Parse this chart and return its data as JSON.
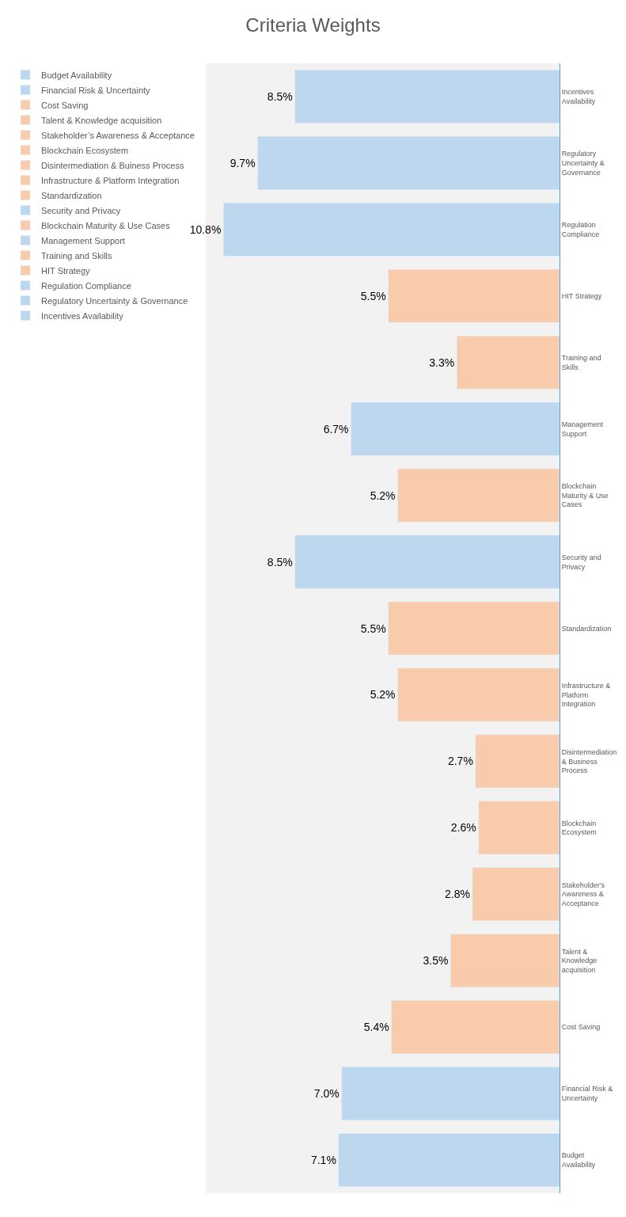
{
  "chart_data": {
    "type": "bar",
    "orientation": "horizontal",
    "title": "Criteria Weights",
    "legend": "left",
    "grid": false,
    "categories": [
      "Incentives Availability",
      "Regulatory Uncertainty & Governance",
      "Regulation Compliance",
      "HIT Strategy",
      "Training and Skills",
      "Management Support",
      "Blockchain Maturity & Use Cases",
      "Security and Privacy",
      "Standardization",
      "Infrastructure & Platform Integration",
      "Disintermediation & Business Process",
      "Blockchain Ecosystem",
      "Stakeholder's Awareness & Acceptance",
      "Talent & Knowledge acquisition",
      "Cost Saving",
      "Financial Risk & Uncertainty",
      "Budget Availability"
    ],
    "series": [
      {
        "name": "Budget Availability",
        "color": "#bdd7ee",
        "values": [
          null,
          null,
          null,
          null,
          null,
          null,
          null,
          null,
          null,
          null,
          null,
          null,
          null,
          null,
          null,
          null,
          7.1
        ],
        "value_labels": [
          null,
          null,
          null,
          null,
          null,
          null,
          null,
          null,
          null,
          null,
          null,
          null,
          null,
          null,
          null,
          null,
          "7.1%"
        ]
      },
      {
        "name": "Financial Risk & Uncertainty",
        "color": "#bdd7ee",
        "values": [
          null,
          null,
          null,
          null,
          null,
          null,
          null,
          null,
          null,
          null,
          null,
          null,
          null,
          null,
          null,
          7.0,
          null
        ],
        "value_labels": [
          null,
          null,
          null,
          null,
          null,
          null,
          null,
          null,
          null,
          null,
          null,
          null,
          null,
          null,
          null,
          "7.0%",
          null
        ]
      },
      {
        "name": "Cost Saving",
        "color": "#f8cbad",
        "values": [
          null,
          null,
          null,
          null,
          null,
          null,
          null,
          null,
          null,
          null,
          null,
          null,
          null,
          null,
          5.4,
          null,
          null
        ],
        "value_labels": [
          null,
          null,
          null,
          null,
          null,
          null,
          null,
          null,
          null,
          null,
          null,
          null,
          null,
          null,
          "5.4%",
          null,
          null
        ]
      },
      {
        "name": "Talent & Knowledge acquisition",
        "color": "#f8cbad",
        "values": [
          null,
          null,
          null,
          null,
          null,
          null,
          null,
          null,
          null,
          null,
          null,
          null,
          null,
          3.5,
          null,
          null,
          null
        ],
        "value_labels": [
          null,
          null,
          null,
          null,
          null,
          null,
          null,
          null,
          null,
          null,
          null,
          null,
          null,
          "3.5%",
          null,
          null,
          null
        ]
      },
      {
        "name": "Stakeholder’s Awareness & Acceptance",
        "color": "#f8cbad",
        "values": [
          null,
          null,
          null,
          null,
          null,
          null,
          null,
          null,
          null,
          null,
          null,
          null,
          2.8,
          null,
          null,
          null,
          null
        ],
        "value_labels": [
          null,
          null,
          null,
          null,
          null,
          null,
          null,
          null,
          null,
          null,
          null,
          null,
          "2.8%",
          null,
          null,
          null,
          null
        ]
      },
      {
        "name": "Blockchain Ecosystem",
        "color": "#f8cbad",
        "values": [
          null,
          null,
          null,
          null,
          null,
          null,
          null,
          null,
          null,
          null,
          null,
          2.6,
          null,
          null,
          null,
          null,
          null
        ],
        "value_labels": [
          null,
          null,
          null,
          null,
          null,
          null,
          null,
          null,
          null,
          null,
          null,
          "2.6%",
          null,
          null,
          null,
          null,
          null
        ]
      },
      {
        "name": "Disintermediation & Buiness Process",
        "color": "#f8cbad",
        "values": [
          null,
          null,
          null,
          null,
          null,
          null,
          null,
          null,
          null,
          null,
          2.7,
          null,
          null,
          null,
          null,
          null,
          null
        ],
        "value_labels": [
          null,
          null,
          null,
          null,
          null,
          null,
          null,
          null,
          null,
          null,
          "2.7%",
          null,
          null,
          null,
          null,
          null,
          null
        ]
      },
      {
        "name": "Infrastructure & Platform Integration",
        "color": "#f8cbad",
        "values": [
          null,
          null,
          null,
          null,
          null,
          null,
          null,
          null,
          null,
          5.2,
          null,
          null,
          null,
          null,
          null,
          null,
          null
        ],
        "value_labels": [
          null,
          null,
          null,
          null,
          null,
          null,
          null,
          null,
          null,
          "5.2%",
          null,
          null,
          null,
          null,
          null,
          null,
          null
        ]
      },
      {
        "name": "Standardization",
        "color": "#f8cbad",
        "values": [
          null,
          null,
          null,
          null,
          null,
          null,
          null,
          null,
          5.5,
          null,
          null,
          null,
          null,
          null,
          null,
          null,
          null
        ],
        "value_labels": [
          null,
          null,
          null,
          null,
          null,
          null,
          null,
          null,
          "5.5%",
          null,
          null,
          null,
          null,
          null,
          null,
          null,
          null
        ]
      },
      {
        "name": "Security and Privacy",
        "color": "#bdd7ee",
        "values": [
          null,
          null,
          null,
          null,
          null,
          null,
          null,
          8.5,
          null,
          null,
          null,
          null,
          null,
          null,
          null,
          null,
          null
        ],
        "value_labels": [
          null,
          null,
          null,
          null,
          null,
          null,
          null,
          "8.5%",
          null,
          null,
          null,
          null,
          null,
          null,
          null,
          null,
          null
        ]
      },
      {
        "name": "Blockchain Maturity & Use Cases",
        "color": "#f8cbad",
        "values": [
          null,
          null,
          null,
          null,
          null,
          null,
          5.2,
          null,
          null,
          null,
          null,
          null,
          null,
          null,
          null,
          null,
          null
        ],
        "value_labels": [
          null,
          null,
          null,
          null,
          null,
          null,
          "5.2%",
          null,
          null,
          null,
          null,
          null,
          null,
          null,
          null,
          null,
          null
        ]
      },
      {
        "name": "Management Support",
        "color": "#bdd7ee",
        "values": [
          null,
          null,
          null,
          null,
          null,
          6.7,
          null,
          null,
          null,
          null,
          null,
          null,
          null,
          null,
          null,
          null,
          null
        ],
        "value_labels": [
          null,
          null,
          null,
          null,
          null,
          "6.7%",
          null,
          null,
          null,
          null,
          null,
          null,
          null,
          null,
          null,
          null,
          null
        ]
      },
      {
        "name": "Training and Skills",
        "color": "#f8cbad",
        "values": [
          null,
          null,
          null,
          null,
          3.3,
          null,
          null,
          null,
          null,
          null,
          null,
          null,
          null,
          null,
          null,
          null,
          null
        ],
        "value_labels": [
          null,
          null,
          null,
          null,
          "3.3%",
          null,
          null,
          null,
          null,
          null,
          null,
          null,
          null,
          null,
          null,
          null,
          null
        ]
      },
      {
        "name": "HIT Strategy",
        "color": "#f8cbad",
        "values": [
          null,
          null,
          null,
          5.5,
          null,
          null,
          null,
          null,
          null,
          null,
          null,
          null,
          null,
          null,
          null,
          null,
          null
        ],
        "value_labels": [
          null,
          null,
          null,
          "5.5%",
          null,
          null,
          null,
          null,
          null,
          null,
          null,
          null,
          null,
          null,
          null,
          null,
          null
        ]
      },
      {
        "name": "Regulation Compliance",
        "color": "#bdd7ee",
        "values": [
          null,
          null,
          10.8,
          null,
          null,
          null,
          null,
          null,
          null,
          null,
          null,
          null,
          null,
          null,
          null,
          null,
          null
        ],
        "value_labels": [
          null,
          null,
          "10.8%",
          null,
          null,
          null,
          null,
          null,
          null,
          null,
          null,
          null,
          null,
          null,
          null,
          null,
          null
        ]
      },
      {
        "name": "Regulatory Uncertainty & Governance",
        "color": "#bdd7ee",
        "values": [
          null,
          9.7,
          null,
          null,
          null,
          null,
          null,
          null,
          null,
          null,
          null,
          null,
          null,
          null,
          null,
          null,
          null
        ],
        "value_labels": [
          null,
          "9.7%",
          null,
          null,
          null,
          null,
          null,
          null,
          null,
          null,
          null,
          null,
          null,
          null,
          null,
          null,
          null
        ]
      },
      {
        "name": "Incentives Availability",
        "color": "#bdd7ee",
        "values": [
          8.5,
          null,
          null,
          null,
          null,
          null,
          null,
          null,
          null,
          null,
          null,
          null,
          null,
          null,
          null,
          null,
          null
        ],
        "value_labels": [
          "8.5%",
          null,
          null,
          null,
          null,
          null,
          null,
          null,
          null,
          null,
          null,
          null,
          null,
          null,
          null,
          null,
          null
        ]
      }
    ]
  }
}
